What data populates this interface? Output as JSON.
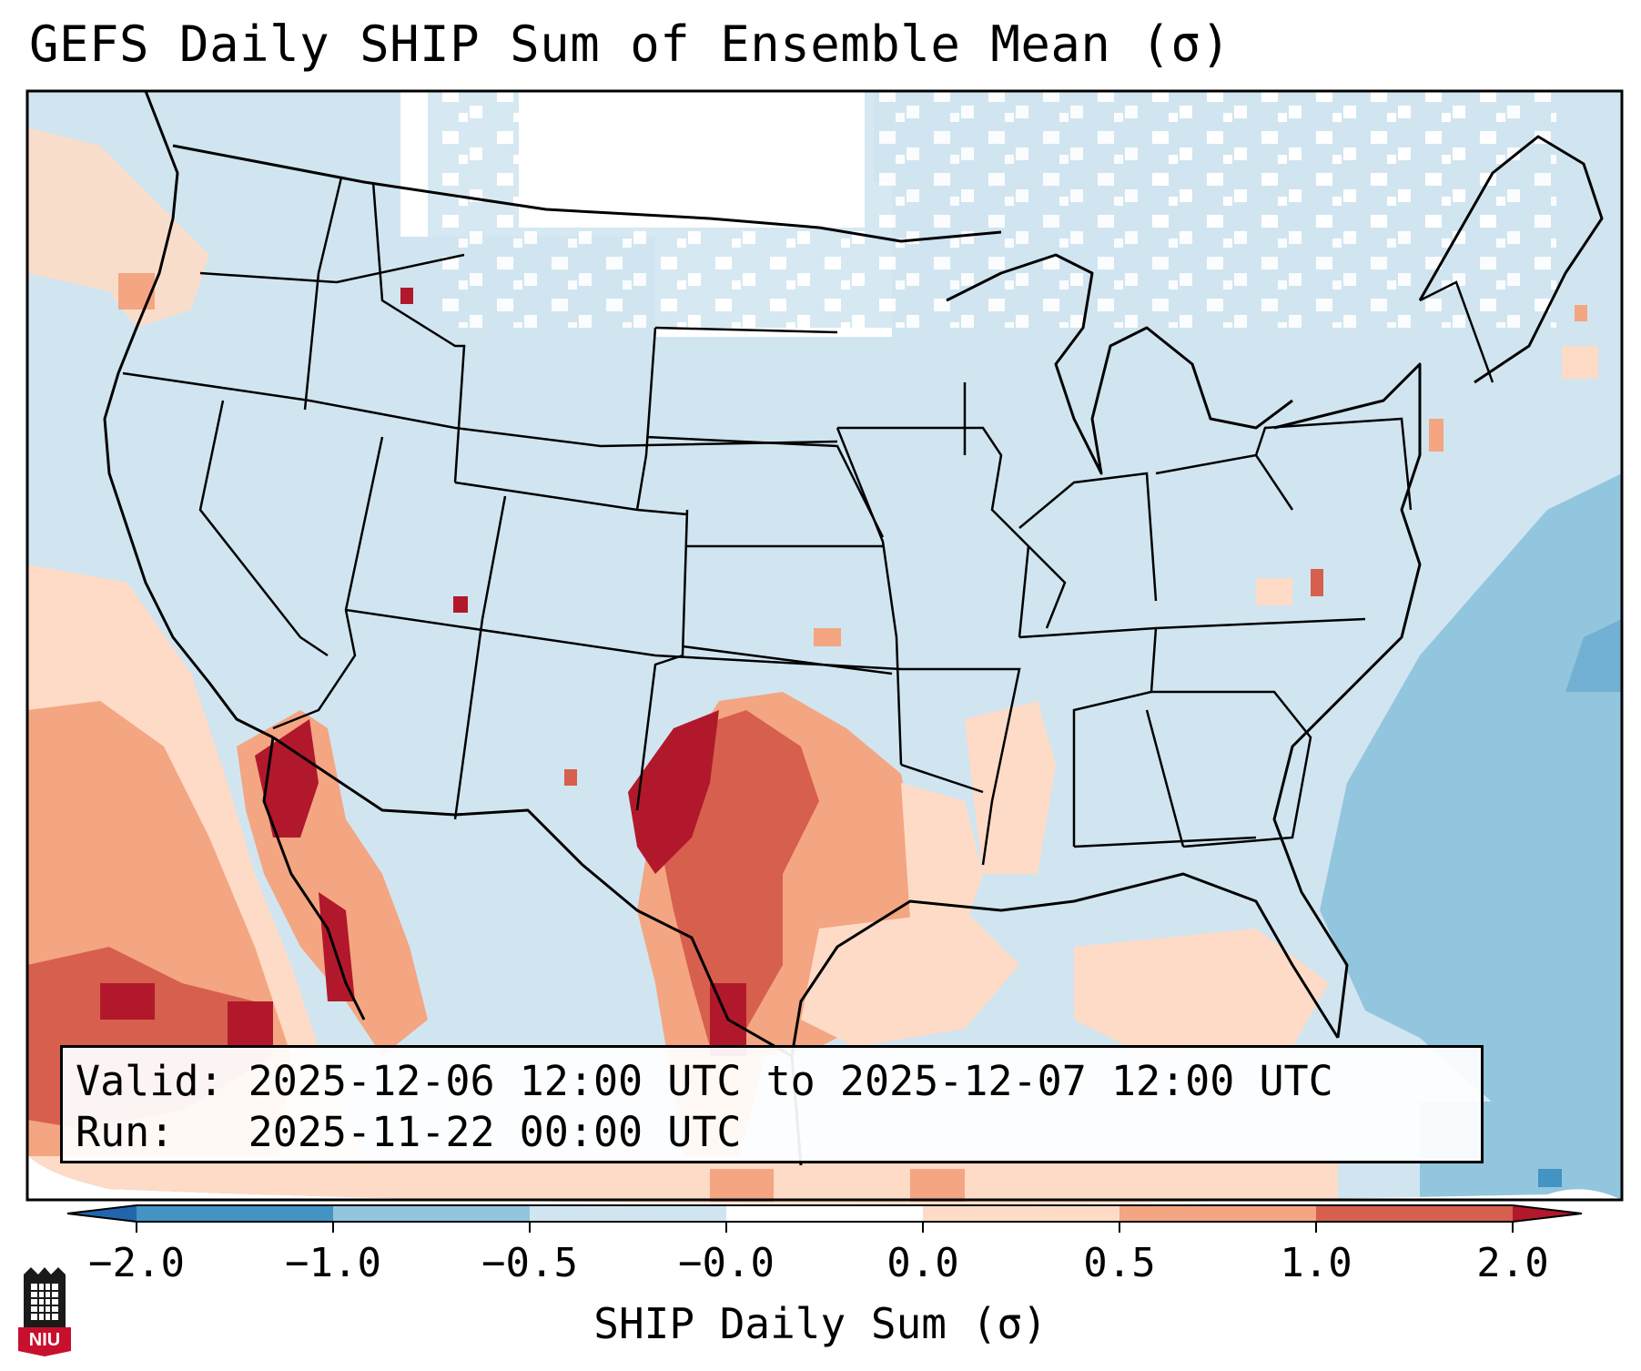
{
  "title": "GEFS Daily SHIP Sum of Ensemble Mean (σ)",
  "info": {
    "valid_label": "Valid:",
    "valid_value": "2025-12-06 12:00 UTC to 2025-12-07 12:00 UTC",
    "run_label": "Run:",
    "run_value": "2025-11-22 00:00 UTC"
  },
  "colorbar": {
    "label": "SHIP Daily Sum (σ)",
    "ticks": [
      "−2.0",
      "−1.0",
      "−0.5",
      "−0.0",
      "0.0",
      "0.5",
      "1.0",
      "2.0"
    ],
    "colors": [
      "#4393c3",
      "#92c5de",
      "#d1e5f0",
      "#ffffff",
      "#fddbc7",
      "#f4a582",
      "#d6604d"
    ],
    "under_color": "#2166ac",
    "over_color": "#b2182b"
  },
  "logo": {
    "text": "NIU",
    "icon": "university-tower-icon"
  }
}
